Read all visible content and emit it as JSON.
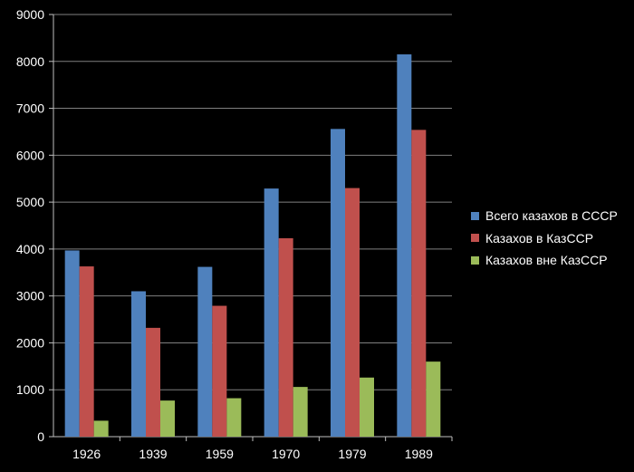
{
  "chart_data": {
    "type": "bar",
    "title": "",
    "xlabel": "",
    "ylabel": "",
    "categories": [
      "1926",
      "1939",
      "1959",
      "1970",
      "1979",
      "1989"
    ],
    "ylim": [
      0,
      9000
    ],
    "yticks": [
      "0",
      "1000",
      "2000",
      "3000",
      "4000",
      "5000",
      "6000",
      "7000",
      "8000",
      "9000"
    ],
    "grid": true,
    "legend_position": "right",
    "series": [
      {
        "name": "Всего казахов в СССР",
        "color": "#4f81bd",
        "values": [
          3970,
          3100,
          3620,
          5290,
          6560,
          8150
        ]
      },
      {
        "name": "Казахов в КазССР",
        "color": "#c0504d",
        "values": [
          3630,
          2320,
          2790,
          4230,
          5300,
          6540
        ]
      },
      {
        "name": "Казахов вне КазССР",
        "color": "#9bbb59",
        "values": [
          340,
          770,
          820,
          1060,
          1260,
          1600
        ]
      }
    ]
  }
}
